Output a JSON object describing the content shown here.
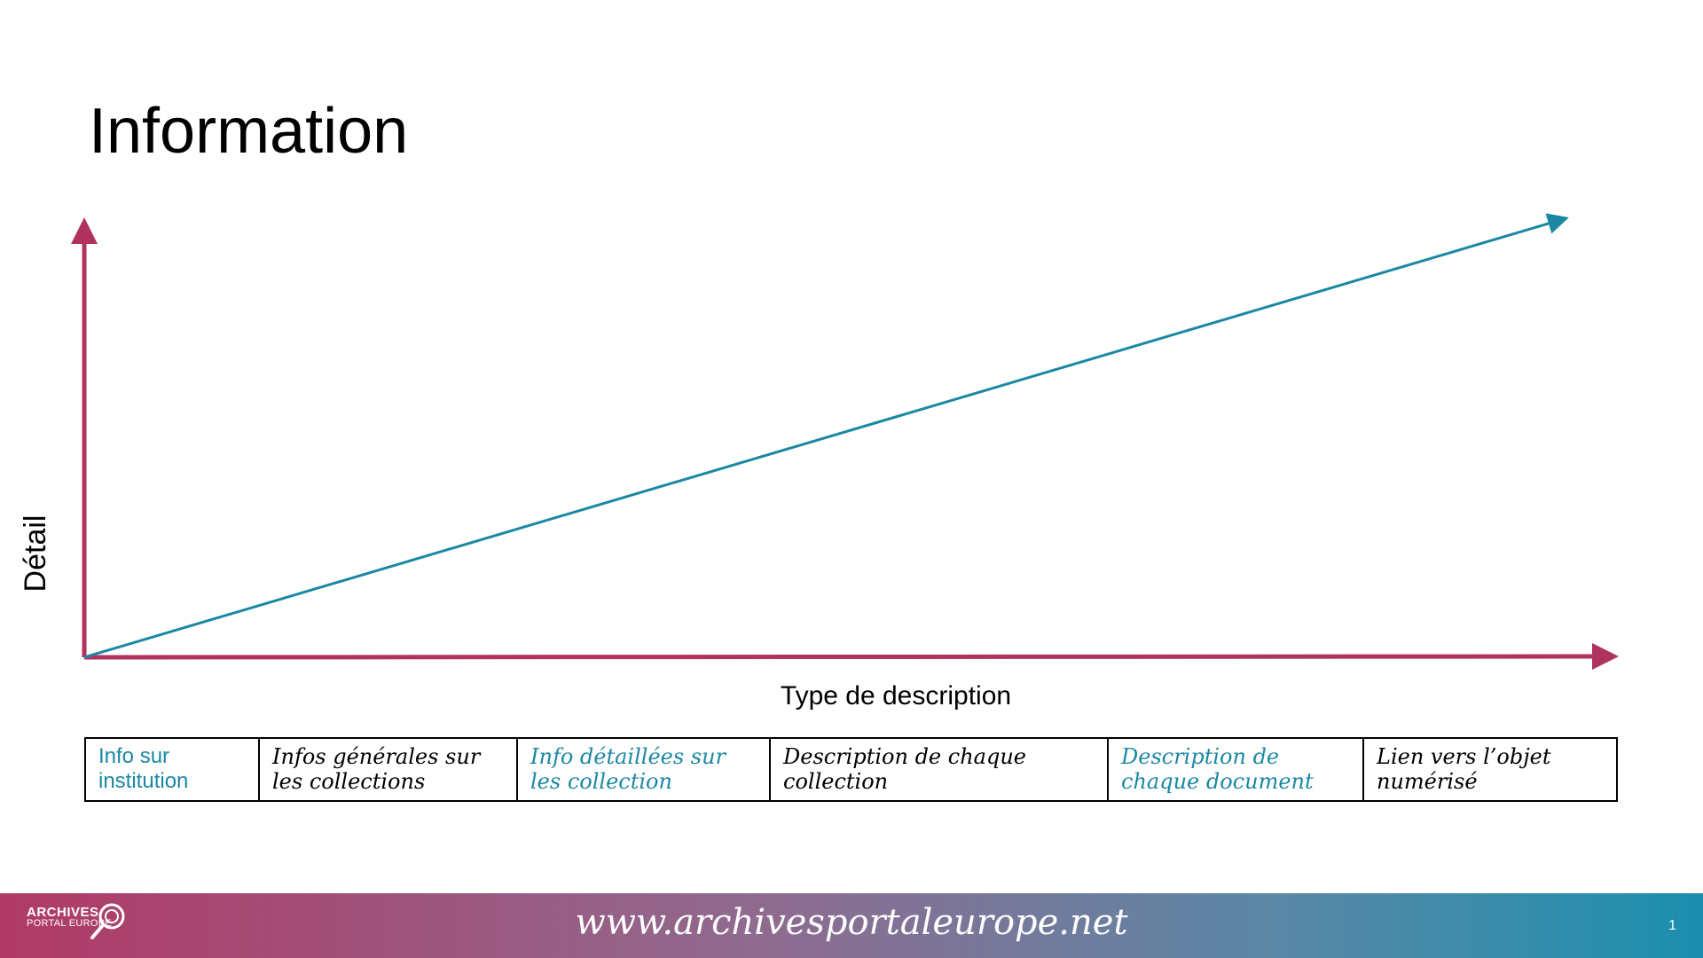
{
  "slide": {
    "title": "Information",
    "page_number": "1"
  },
  "diagram": {
    "y_axis_label": "Détail",
    "x_axis_label": "Type de description",
    "colors": {
      "axis": "#b0325f",
      "trend_line": "#1b88a3",
      "accent_text": "#1b88a3"
    }
  },
  "table": {
    "cells": [
      {
        "text": "Info sur institution",
        "color": "#1b88a3"
      },
      {
        "text": "Infos générales sur les collections",
        "color": "#000000"
      },
      {
        "text": "Info détaillées sur les collection",
        "color": "#1b88a3"
      },
      {
        "text": "Description de chaque collection",
        "color": "#000000"
      },
      {
        "text": "Description de chaque document",
        "color": "#1b88a3"
      },
      {
        "text": "Lien vers l’objet numérisé",
        "color": "#000000"
      }
    ]
  },
  "footer": {
    "logo_top": "ARCHIVES",
    "logo_bottom": "PORTAL EUROPE",
    "logo_icon": "magnifier-icon",
    "url": "www.archivesportaleurope.net"
  }
}
